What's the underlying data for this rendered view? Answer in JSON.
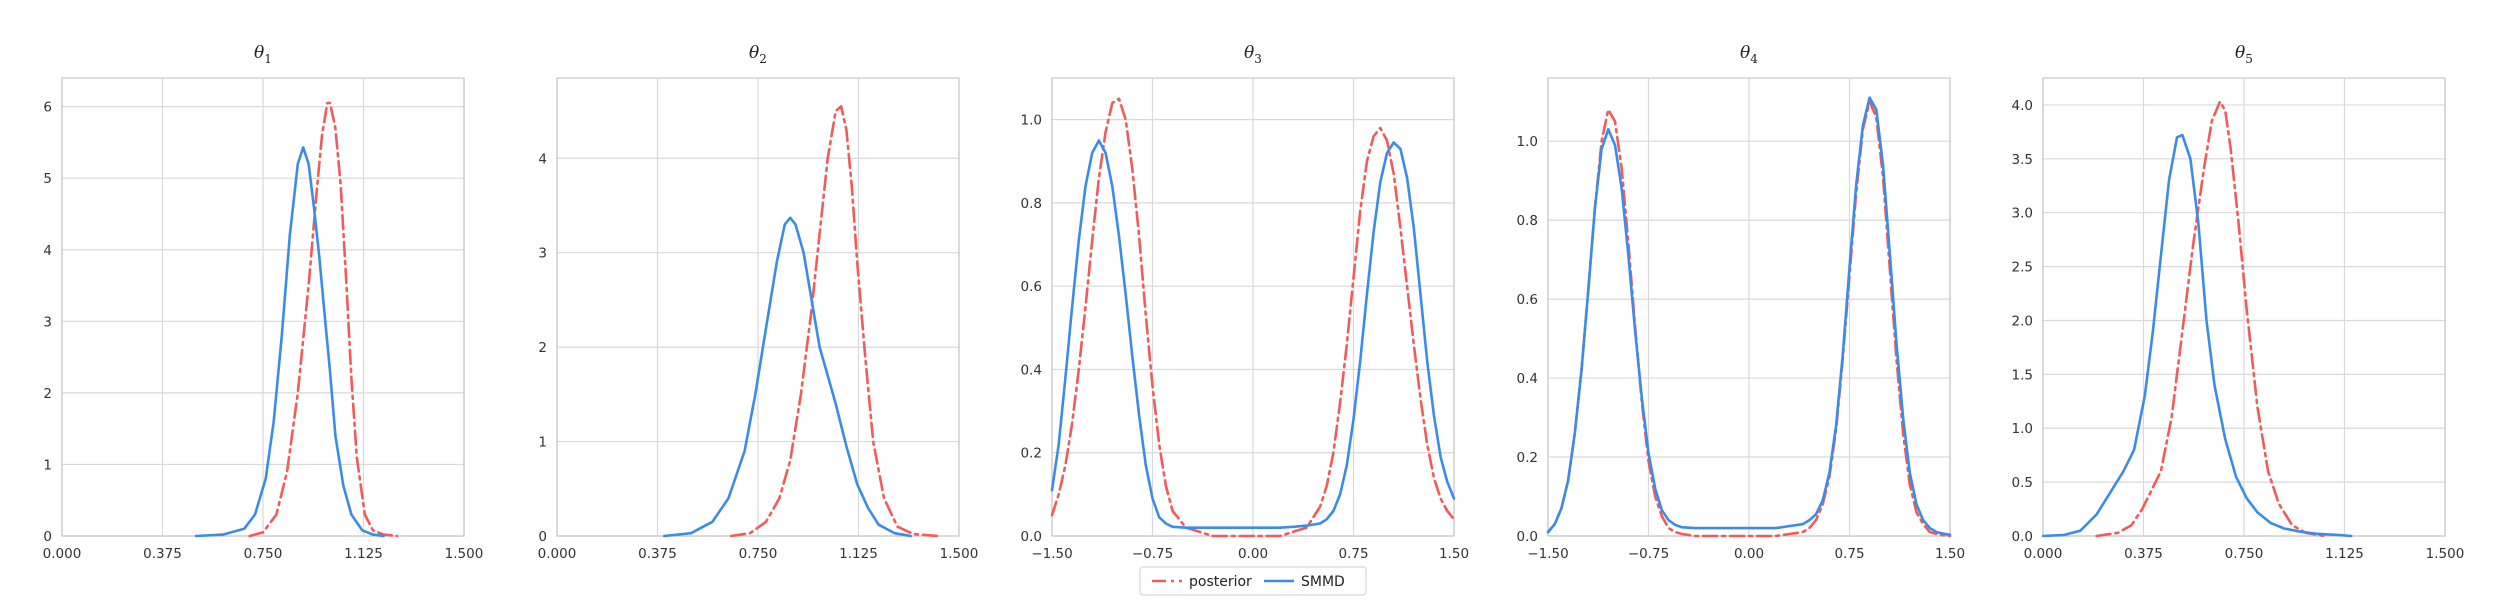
{
  "chart_data": {
    "type": "line",
    "legend": {
      "placement": "bottom-center",
      "entries": [
        {
          "label": "posterior",
          "color": "#f05b5b",
          "style": "dashdot"
        },
        {
          "label": "SMMD",
          "color": "#3d8be8",
          "style": "solid"
        }
      ]
    },
    "grid": true,
    "panels": [
      {
        "title": "θ",
        "title_sub": "1",
        "xlim": [
          0,
          1.5
        ],
        "ylim": [
          0,
          6.4
        ],
        "xticks": [
          0,
          0.375,
          0.75,
          1.125,
          1.5
        ],
        "xtick_labels": [
          "0.000",
          "0.375",
          "0.750",
          "1.125",
          "1.500"
        ],
        "yticks": [
          0,
          1,
          2,
          3,
          4,
          5,
          6
        ],
        "ytick_labels": [
          "0",
          "1",
          "2",
          "3",
          "4",
          "5",
          "6"
        ],
        "series": [
          {
            "name": "posterior",
            "color": "#f05b5b",
            "style": "dashdot",
            "x": [
              0.7,
              0.75,
              0.8,
              0.84,
              0.88,
              0.92,
              0.95,
              0.97,
              0.99,
              1.0,
              1.02,
              1.04,
              1.06,
              1.08,
              1.1,
              1.13,
              1.16,
              1.2,
              1.25
            ],
            "y": [
              0.0,
              0.05,
              0.3,
              0.9,
              2.0,
              3.5,
              4.8,
              5.6,
              6.05,
              6.05,
              5.7,
              4.9,
              3.6,
              2.2,
              1.1,
              0.3,
              0.08,
              0.02,
              0.0
            ]
          },
          {
            "name": "SMMD",
            "color": "#3d8be8",
            "style": "solid",
            "x": [
              0.5,
              0.6,
              0.68,
              0.72,
              0.76,
              0.79,
              0.82,
              0.85,
              0.88,
              0.9,
              0.92,
              0.94,
              0.96,
              0.98,
              1.0,
              1.02,
              1.05,
              1.08,
              1.12,
              1.16,
              1.2
            ],
            "y": [
              0.0,
              0.02,
              0.1,
              0.3,
              0.8,
              1.6,
              2.8,
              4.2,
              5.2,
              5.43,
              5.2,
              4.6,
              3.9,
              3.1,
              2.3,
              1.4,
              0.7,
              0.3,
              0.08,
              0.02,
              0.0
            ]
          }
        ]
      },
      {
        "title": "θ",
        "title_sub": "2",
        "xlim": [
          0,
          1.5
        ],
        "ylim": [
          0,
          4.85
        ],
        "xticks": [
          0,
          0.375,
          0.75,
          1.125,
          1.5
        ],
        "xtick_labels": [
          "0.000",
          "0.375",
          "0.750",
          "1.125",
          "1.500"
        ],
        "yticks": [
          0,
          1,
          2,
          3,
          4
        ],
        "ytick_labels": [
          "0",
          "1",
          "2",
          "3",
          "4"
        ],
        "series": [
          {
            "name": "posterior",
            "color": "#f05b5b",
            "style": "dashdot",
            "x": [
              0.65,
              0.72,
              0.78,
              0.83,
              0.87,
              0.91,
              0.95,
              0.98,
              1.01,
              1.04,
              1.06,
              1.08,
              1.1,
              1.12,
              1.15,
              1.18,
              1.22,
              1.27,
              1.33,
              1.42
            ],
            "y": [
              0.0,
              0.03,
              0.15,
              0.4,
              0.8,
              1.5,
              2.4,
              3.2,
              4.0,
              4.5,
              4.55,
              4.3,
              3.7,
              2.9,
              1.9,
              1.0,
              0.4,
              0.1,
              0.02,
              0.0
            ]
          },
          {
            "name": "SMMD",
            "color": "#3d8be8",
            "style": "solid",
            "x": [
              0.4,
              0.5,
              0.58,
              0.64,
              0.7,
              0.74,
              0.78,
              0.82,
              0.85,
              0.87,
              0.89,
              0.92,
              0.95,
              0.98,
              1.01,
              1.04,
              1.08,
              1.12,
              1.16,
              1.2,
              1.26,
              1.32
            ],
            "y": [
              0.0,
              0.03,
              0.15,
              0.4,
              0.9,
              1.5,
              2.2,
              2.9,
              3.3,
              3.37,
              3.3,
              3.0,
              2.5,
              2.0,
              1.7,
              1.4,
              0.95,
              0.55,
              0.3,
              0.12,
              0.03,
              0.0
            ]
          }
        ]
      },
      {
        "title": "θ",
        "title_sub": "3",
        "xlim": [
          -1.5,
          1.5
        ],
        "ylim": [
          0,
          1.1
        ],
        "xticks": [
          -1.5,
          -0.75,
          0,
          0.75,
          1.5
        ],
        "xtick_labels": [
          "−1.50",
          "−0.75",
          "0.00",
          "0.75",
          "1.50"
        ],
        "yticks": [
          0,
          0.2,
          0.4,
          0.6,
          0.8,
          1.0
        ],
        "ytick_labels": [
          "0.0",
          "0.2",
          "0.4",
          "0.6",
          "0.8",
          "1.0"
        ],
        "series": [
          {
            "name": "posterior",
            "color": "#f05b5b",
            "style": "dashdot",
            "x": [
              -1.5,
              -1.45,
              -1.4,
              -1.35,
              -1.3,
              -1.25,
              -1.2,
              -1.15,
              -1.1,
              -1.05,
              -1.0,
              -0.95,
              -0.9,
              -0.85,
              -0.8,
              -0.75,
              -0.7,
              -0.65,
              -0.6,
              -0.5,
              -0.4,
              -0.3,
              -0.2,
              -0.1,
              0.0,
              0.1,
              0.2,
              0.3,
              0.4,
              0.5,
              0.55,
              0.6,
              0.65,
              0.7,
              0.75,
              0.8,
              0.85,
              0.9,
              0.95,
              1.0,
              1.05,
              1.1,
              1.15,
              1.2,
              1.25,
              1.3,
              1.35,
              1.4,
              1.45,
              1.5
            ],
            "y": [
              0.05,
              0.1,
              0.17,
              0.27,
              0.4,
              0.55,
              0.71,
              0.86,
              0.97,
              1.04,
              1.05,
              1.0,
              0.88,
              0.72,
              0.53,
              0.36,
              0.22,
              0.12,
              0.06,
              0.02,
              0.01,
              0.0,
              0.0,
              0.0,
              0.0,
              0.0,
              0.0,
              0.01,
              0.02,
              0.07,
              0.12,
              0.2,
              0.32,
              0.46,
              0.62,
              0.78,
              0.9,
              0.96,
              0.98,
              0.95,
              0.87,
              0.74,
              0.6,
              0.46,
              0.33,
              0.22,
              0.14,
              0.09,
              0.06,
              0.04
            ]
          },
          {
            "name": "SMMD",
            "color": "#3d8be8",
            "style": "solid",
            "x": [
              -1.5,
              -1.45,
              -1.4,
              -1.35,
              -1.3,
              -1.25,
              -1.2,
              -1.15,
              -1.1,
              -1.05,
              -1.0,
              -0.95,
              -0.9,
              -0.85,
              -0.8,
              -0.75,
              -0.7,
              -0.65,
              -0.6,
              -0.5,
              -0.4,
              -0.3,
              -0.2,
              -0.1,
              0.0,
              0.1,
              0.2,
              0.3,
              0.4,
              0.5,
              0.55,
              0.6,
              0.65,
              0.7,
              0.75,
              0.8,
              0.85,
              0.9,
              0.95,
              1.0,
              1.05,
              1.1,
              1.15,
              1.2,
              1.25,
              1.3,
              1.35,
              1.4,
              1.45,
              1.5
            ],
            "y": [
              0.11,
              0.22,
              0.38,
              0.55,
              0.71,
              0.84,
              0.92,
              0.95,
              0.92,
              0.84,
              0.72,
              0.58,
              0.43,
              0.29,
              0.17,
              0.09,
              0.045,
              0.03,
              0.022,
              0.02,
              0.02,
              0.02,
              0.02,
              0.02,
              0.02,
              0.02,
              0.02,
              0.022,
              0.025,
              0.03,
              0.04,
              0.06,
              0.1,
              0.17,
              0.28,
              0.42,
              0.58,
              0.73,
              0.85,
              0.92,
              0.945,
              0.93,
              0.86,
              0.74,
              0.58,
              0.42,
              0.29,
              0.19,
              0.13,
              0.09
            ]
          }
        ]
      },
      {
        "title": "θ",
        "title_sub": "4",
        "xlim": [
          -1.5,
          1.5
        ],
        "ylim": [
          0,
          1.16
        ],
        "xticks": [
          -1.5,
          -0.75,
          0,
          0.75,
          1.5
        ],
        "xtick_labels": [
          "−1.50",
          "−0.75",
          "0.00",
          "0.75",
          "1.50"
        ],
        "yticks": [
          0,
          0.2,
          0.4,
          0.6,
          0.8,
          1.0
        ],
        "ytick_labels": [
          "0.0",
          "0.2",
          "0.4",
          "0.6",
          "0.8",
          "1.0"
        ],
        "series": [
          {
            "name": "posterior",
            "color": "#f05b5b",
            "style": "dashdot",
            "x": [
              -1.5,
              -1.45,
              -1.4,
              -1.35,
              -1.3,
              -1.25,
              -1.2,
              -1.15,
              -1.1,
              -1.05,
              -1.0,
              -0.95,
              -0.9,
              -0.85,
              -0.8,
              -0.75,
              -0.7,
              -0.65,
              -0.6,
              -0.55,
              -0.5,
              -0.4,
              -0.3,
              -0.2,
              -0.1,
              0.0,
              0.1,
              0.2,
              0.3,
              0.4,
              0.45,
              0.5,
              0.55,
              0.6,
              0.65,
              0.7,
              0.75,
              0.8,
              0.85,
              0.9,
              0.95,
              1.0,
              1.05,
              1.1,
              1.15,
              1.2,
              1.25,
              1.3,
              1.35,
              1.4,
              1.45,
              1.5
            ],
            "y": [
              0.01,
              0.03,
              0.07,
              0.14,
              0.26,
              0.42,
              0.62,
              0.83,
              1.0,
              1.08,
              1.05,
              0.93,
              0.74,
              0.53,
              0.34,
              0.19,
              0.1,
              0.05,
              0.02,
              0.01,
              0.005,
              0.0,
              0.0,
              0.0,
              0.0,
              0.0,
              0.0,
              0.0,
              0.005,
              0.01,
              0.02,
              0.04,
              0.08,
              0.15,
              0.27,
              0.45,
              0.66,
              0.87,
              1.03,
              1.1,
              1.06,
              0.91,
              0.68,
              0.45,
              0.26,
              0.13,
              0.06,
              0.03,
              0.01,
              0.005,
              0.002,
              0.0
            ]
          },
          {
            "name": "SMMD",
            "color": "#3d8be8",
            "style": "solid",
            "x": [
              -1.5,
              -1.45,
              -1.4,
              -1.35,
              -1.3,
              -1.25,
              -1.2,
              -1.15,
              -1.1,
              -1.05,
              -1.0,
              -0.95,
              -0.9,
              -0.85,
              -0.8,
              -0.75,
              -0.7,
              -0.65,
              -0.6,
              -0.55,
              -0.5,
              -0.4,
              -0.3,
              -0.2,
              -0.1,
              0.0,
              0.1,
              0.2,
              0.3,
              0.4,
              0.45,
              0.5,
              0.55,
              0.6,
              0.65,
              0.7,
              0.75,
              0.8,
              0.85,
              0.9,
              0.95,
              1.0,
              1.05,
              1.1,
              1.15,
              1.2,
              1.25,
              1.3,
              1.35,
              1.4,
              1.45,
              1.5
            ],
            "y": [
              0.01,
              0.03,
              0.07,
              0.14,
              0.26,
              0.42,
              0.62,
              0.83,
              0.98,
              1.03,
              0.99,
              0.88,
              0.71,
              0.52,
              0.35,
              0.21,
              0.12,
              0.065,
              0.04,
              0.028,
              0.022,
              0.02,
              0.02,
              0.02,
              0.02,
              0.02,
              0.02,
              0.02,
              0.025,
              0.03,
              0.04,
              0.055,
              0.09,
              0.16,
              0.28,
              0.46,
              0.68,
              0.89,
              1.04,
              1.11,
              1.08,
              0.94,
              0.72,
              0.49,
              0.3,
              0.16,
              0.08,
              0.04,
              0.02,
              0.01,
              0.006,
              0.003
            ]
          }
        ]
      },
      {
        "title": "θ",
        "title_sub": "5",
        "xlim": [
          0,
          1.5
        ],
        "ylim": [
          0,
          4.25
        ],
        "xticks": [
          0,
          0.375,
          0.75,
          1.125,
          1.5
        ],
        "xtick_labels": [
          "0.000",
          "0.375",
          "0.750",
          "1.125",
          "1.500"
        ],
        "yticks": [
          0,
          0.5,
          1.0,
          1.5,
          2.0,
          2.5,
          3.0,
          3.5,
          4.0
        ],
        "ytick_labels": [
          "0.0",
          "0.5",
          "1.0",
          "1.5",
          "2.0",
          "2.5",
          "3.0",
          "3.5",
          "4.0"
        ],
        "series": [
          {
            "name": "posterior",
            "color": "#f05b5b",
            "style": "dashdot",
            "x": [
              0.2,
              0.28,
              0.33,
              0.37,
              0.4,
              0.44,
              0.48,
              0.52,
              0.56,
              0.6,
              0.63,
              0.66,
              0.68,
              0.7,
              0.73,
              0.76,
              0.8,
              0.84,
              0.88,
              0.93,
              0.98,
              1.05
            ],
            "y": [
              0.0,
              0.03,
              0.1,
              0.25,
              0.4,
              0.6,
              1.1,
              1.9,
              2.7,
              3.4,
              3.85,
              4.03,
              3.95,
              3.6,
              2.9,
              2.1,
              1.2,
              0.6,
              0.3,
              0.1,
              0.03,
              0.0
            ]
          },
          {
            "name": "SMMD",
            "color": "#3d8be8",
            "style": "solid",
            "x": [
              0.0,
              0.08,
              0.14,
              0.2,
              0.25,
              0.3,
              0.34,
              0.38,
              0.41,
              0.44,
              0.47,
              0.5,
              0.52,
              0.55,
              0.58,
              0.61,
              0.64,
              0.68,
              0.72,
              0.76,
              0.8,
              0.85,
              0.9,
              0.96,
              1.02,
              1.1,
              1.15
            ],
            "y": [
              0.0,
              0.01,
              0.05,
              0.2,
              0.4,
              0.6,
              0.8,
              1.3,
              1.9,
              2.6,
              3.3,
              3.7,
              3.72,
              3.5,
              2.9,
              2.0,
              1.4,
              0.9,
              0.55,
              0.35,
              0.22,
              0.12,
              0.07,
              0.04,
              0.02,
              0.01,
              0.0
            ]
          }
        ]
      }
    ]
  }
}
